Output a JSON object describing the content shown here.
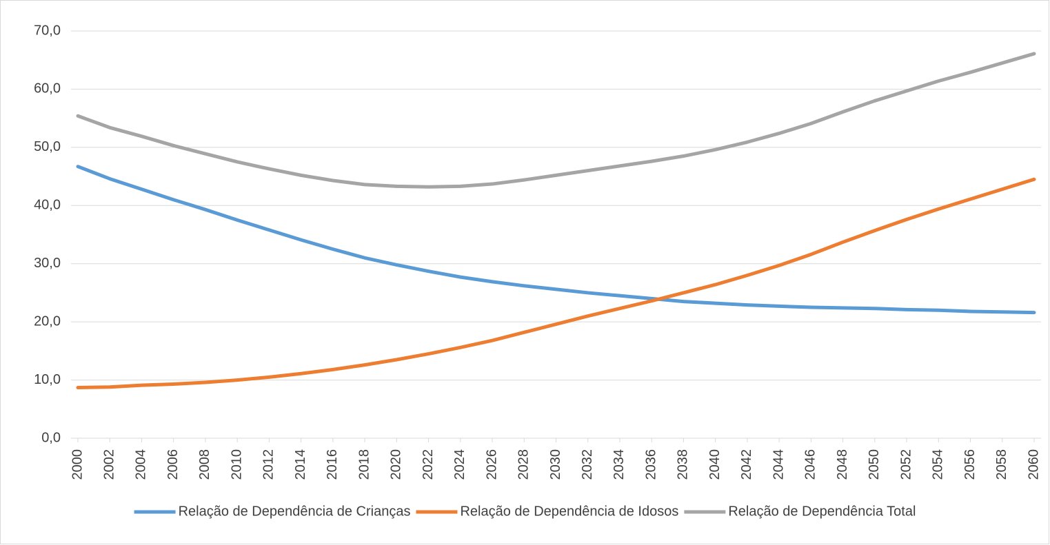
{
  "chart_data": {
    "type": "line",
    "x": [
      2000,
      2002,
      2004,
      2006,
      2008,
      2010,
      2012,
      2014,
      2016,
      2018,
      2020,
      2022,
      2024,
      2026,
      2028,
      2030,
      2032,
      2034,
      2036,
      2038,
      2040,
      2042,
      2044,
      2046,
      2048,
      2050,
      2052,
      2054,
      2056,
      2058,
      2060
    ],
    "xlim": [
      2000,
      2060
    ],
    "xticks": [
      2000,
      2002,
      2004,
      2006,
      2008,
      2010,
      2012,
      2014,
      2016,
      2018,
      2020,
      2022,
      2024,
      2026,
      2028,
      2030,
      2032,
      2034,
      2036,
      2038,
      2040,
      2042,
      2044,
      2046,
      2048,
      2050,
      2052,
      2054,
      2056,
      2058,
      2060
    ],
    "ylim": [
      0,
      70
    ],
    "yticks": [
      {
        "value": 0,
        "label": "0,0"
      },
      {
        "value": 10,
        "label": "10,0"
      },
      {
        "value": 20,
        "label": "20,0"
      },
      {
        "value": 30,
        "label": "30,0"
      },
      {
        "value": 40,
        "label": "40,0"
      },
      {
        "value": 50,
        "label": "50,0"
      },
      {
        "value": 60,
        "label": "60,0"
      },
      {
        "value": 70,
        "label": "70,0"
      }
    ],
    "grid": true,
    "legend": "bottom",
    "series": [
      {
        "name": "Relação de Dependência de Crianças",
        "color": "#5b9bd5",
        "values": [
          46.7,
          44.6,
          42.8,
          41.0,
          39.3,
          37.5,
          35.8,
          34.1,
          32.5,
          31.0,
          29.8,
          28.7,
          27.7,
          26.9,
          26.2,
          25.6,
          25.0,
          24.5,
          24.0,
          23.5,
          23.2,
          22.9,
          22.7,
          22.5,
          22.4,
          22.3,
          22.1,
          22.0,
          21.8,
          21.7,
          21.6
        ]
      },
      {
        "name": "Relação de Dependência de Idosos",
        "color": "#ed7d31",
        "values": [
          8.7,
          8.8,
          9.1,
          9.3,
          9.6,
          10.0,
          10.5,
          11.1,
          11.8,
          12.6,
          13.5,
          14.5,
          15.6,
          16.8,
          18.2,
          19.6,
          21.0,
          22.3,
          23.6,
          25.0,
          26.4,
          28.0,
          29.7,
          31.6,
          33.7,
          35.7,
          37.6,
          39.4,
          41.1,
          42.8,
          44.5
        ]
      },
      {
        "name": "Relação de Dependência Total",
        "color": "#a5a5a5",
        "values": [
          55.4,
          53.4,
          51.9,
          50.3,
          48.9,
          47.5,
          46.3,
          45.2,
          44.3,
          43.6,
          43.3,
          43.2,
          43.3,
          43.7,
          44.4,
          45.2,
          46.0,
          46.8,
          47.6,
          48.5,
          49.6,
          50.9,
          52.4,
          54.1,
          56.1,
          58.0,
          59.7,
          61.4,
          62.9,
          64.5,
          66.1
        ]
      }
    ]
  }
}
